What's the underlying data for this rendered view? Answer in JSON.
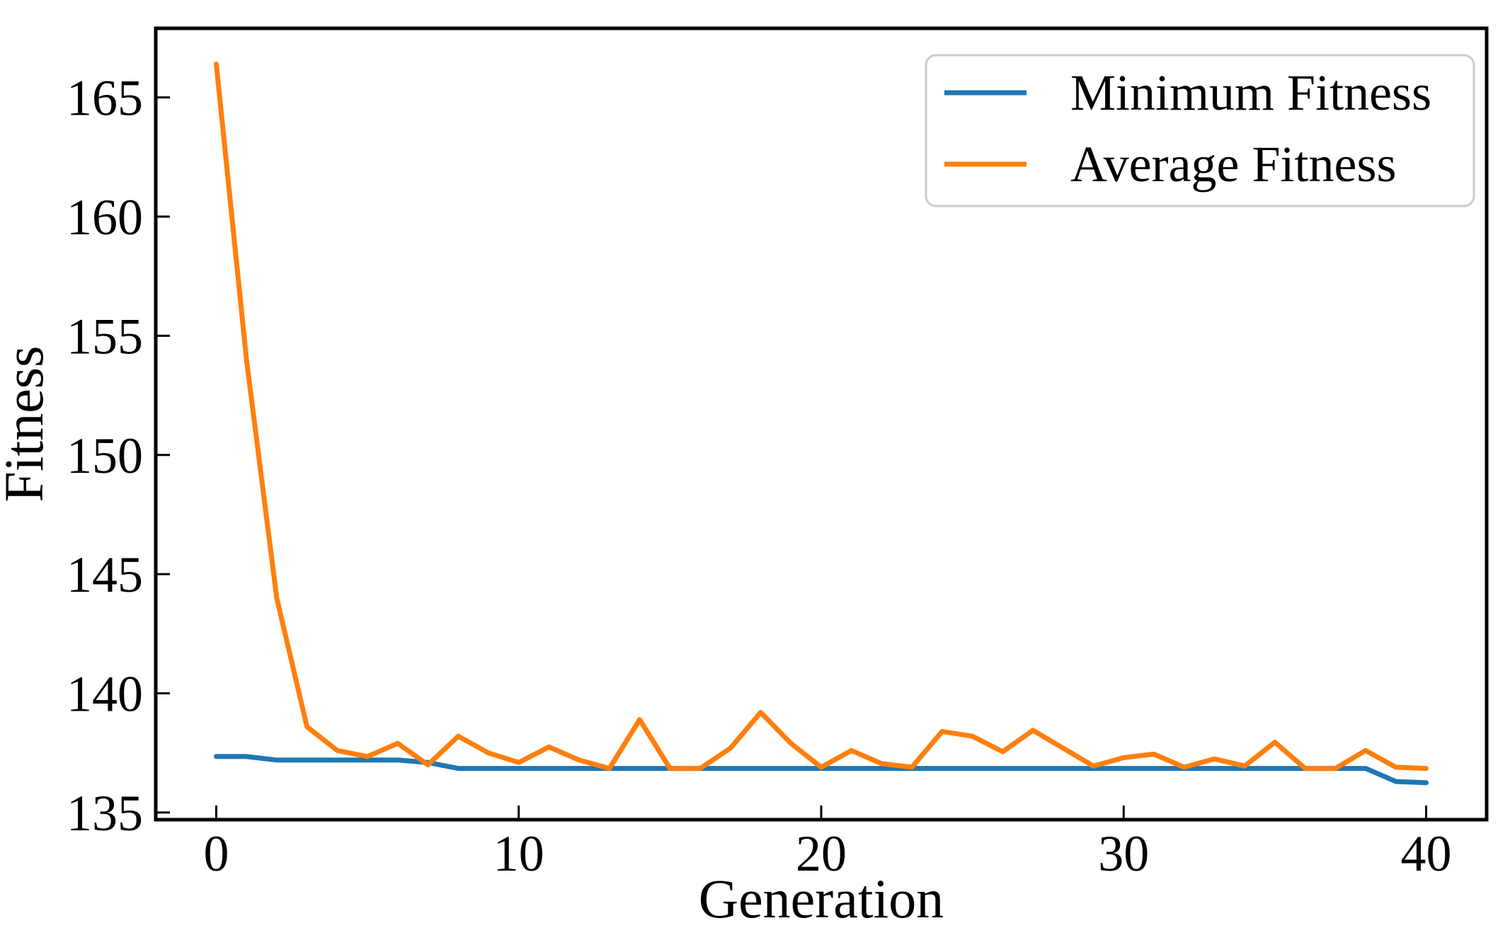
{
  "chart_data": {
    "type": "line",
    "title": "",
    "xlabel": "Generation",
    "ylabel": "Fitness",
    "xlim": [
      -2,
      42
    ],
    "ylim": [
      134.7,
      167.9
    ],
    "xticks": [
      0,
      10,
      20,
      30,
      40
    ],
    "yticks": [
      135,
      140,
      145,
      150,
      155,
      160,
      165
    ],
    "grid": false,
    "legend_position": "upper right",
    "axis_color": "#000000",
    "legend_border_color": "#cbcbcb",
    "x": [
      0,
      1,
      2,
      3,
      4,
      5,
      6,
      7,
      8,
      9,
      10,
      11,
      12,
      13,
      14,
      15,
      16,
      17,
      18,
      19,
      20,
      21,
      22,
      23,
      24,
      25,
      26,
      27,
      28,
      29,
      30,
      31,
      32,
      33,
      34,
      35,
      36,
      37,
      38,
      39,
      40
    ],
    "series": [
      {
        "name": "Minimum Fitness",
        "color": "#1f77b4",
        "values": [
          137.35,
          137.35,
          137.2,
          137.2,
          137.2,
          137.2,
          137.2,
          137.1,
          136.85,
          136.85,
          136.85,
          136.85,
          136.85,
          136.85,
          136.85,
          136.85,
          136.85,
          136.85,
          136.85,
          136.85,
          136.85,
          136.85,
          136.85,
          136.85,
          136.85,
          136.85,
          136.85,
          136.85,
          136.85,
          136.85,
          136.85,
          136.85,
          136.85,
          136.85,
          136.85,
          136.85,
          136.85,
          136.85,
          136.85,
          136.3,
          136.25
        ]
      },
      {
        "name": "Average Fitness",
        "color": "#ff7f0e",
        "values": [
          166.4,
          154.0,
          144.0,
          138.6,
          137.6,
          137.35,
          137.9,
          137.0,
          138.2,
          137.5,
          137.1,
          137.75,
          137.2,
          136.85,
          138.9,
          136.85,
          136.85,
          137.7,
          139.2,
          137.9,
          136.9,
          137.6,
          137.05,
          136.9,
          138.4,
          138.2,
          137.55,
          138.45,
          137.7,
          136.95,
          137.3,
          137.45,
          136.9,
          137.25,
          136.95,
          137.95,
          136.85,
          136.85,
          137.6,
          136.9,
          136.85
        ]
      }
    ]
  }
}
